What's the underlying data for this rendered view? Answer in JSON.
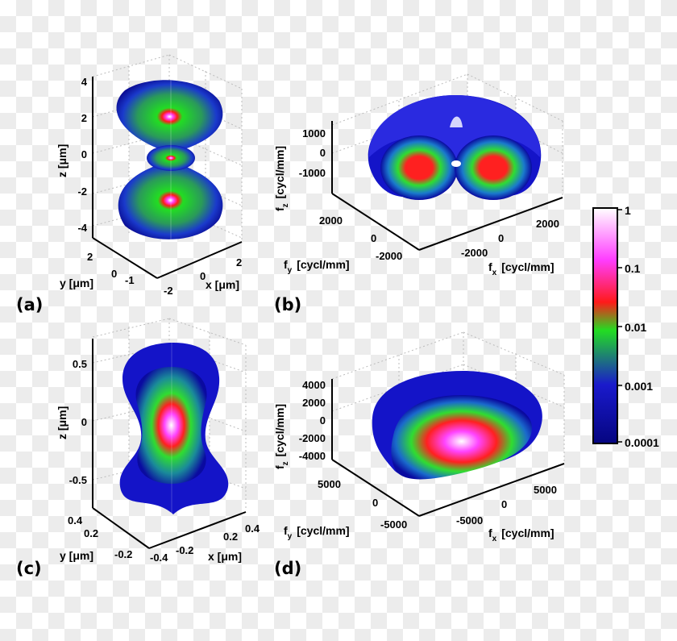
{
  "panels": {
    "a": {
      "label": "(a)",
      "z_axis_label": "z  [μm]",
      "x_axis_label": "x  [μm]",
      "y_axis_label": "y  [μm]",
      "z_ticks": [
        "4",
        "2",
        "0",
        "-2",
        "-4"
      ],
      "x_ticks": [
        "2",
        "0",
        "-2"
      ],
      "y_ticks": [
        "2",
        "0",
        "-1"
      ]
    },
    "b": {
      "label": "(b)",
      "z_axis_label": "f",
      "z_axis_sub": "z",
      "z_axis_unit": "[cycl/mm]",
      "x_axis_label": "f",
      "x_axis_sub": "x",
      "x_axis_unit": "[cycl/mm]",
      "y_axis_label": "f",
      "y_axis_sub": "y",
      "y_axis_unit": "[cycl/mm]",
      "z_ticks": [
        "1000",
        "0",
        "-1000"
      ],
      "x_ticks": [
        "2000",
        "0",
        "-2000"
      ],
      "y_ticks": [
        "2000",
        "0",
        "-2000"
      ]
    },
    "c": {
      "label": "(c)",
      "z_axis_label": "z  [μm]",
      "x_axis_label": "x  [μm]",
      "y_axis_label": "y  [μm]",
      "z_ticks": [
        "0.5",
        "0",
        "-0.5"
      ],
      "x_ticks": [
        "0.4",
        "0.2",
        "-0.2",
        "-0.4"
      ],
      "y_ticks": [
        "0.4",
        "0.2",
        "-0.2"
      ]
    },
    "d": {
      "label": "(d)",
      "z_axis_label": "f",
      "z_axis_sub": "z",
      "z_axis_unit": "[cycl/mm]",
      "x_axis_label": "f",
      "x_axis_sub": "x",
      "x_axis_unit": "[cycl/mm]",
      "y_axis_label": "f",
      "y_axis_sub": "y",
      "y_axis_unit": "[cycl/mm]",
      "z_ticks": [
        "4000",
        "2000",
        "0",
        "-2000",
        "-4000"
      ],
      "x_ticks": [
        "5000",
        "0",
        "-5000"
      ],
      "y_ticks": [
        "5000",
        "0",
        "-5000"
      ]
    }
  },
  "colorbar": {
    "scale": "log",
    "ticks": [
      "1",
      "0.1",
      "0.01",
      "0.001",
      "0.0001"
    ],
    "colors": [
      "#ffffff",
      "#ff3dff",
      "#ff1a1a",
      "#22dd22",
      "#1a1acc",
      "#050580"
    ]
  }
}
